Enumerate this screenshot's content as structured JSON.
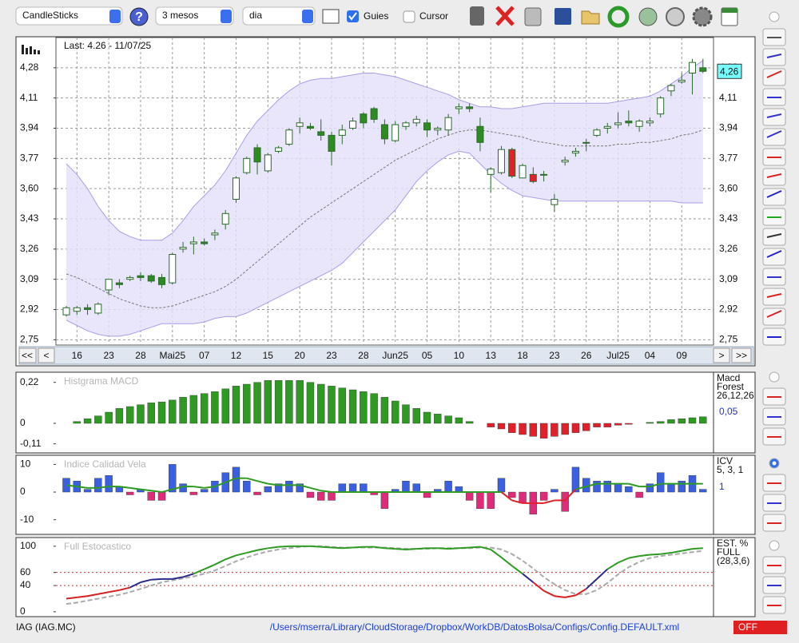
{
  "toolbar": {
    "chart_type": "CandleSticks",
    "period": "3 mesos",
    "interval": "dia",
    "guides": "Guies",
    "cursor": "Cursor",
    "help": "?"
  },
  "navigation": {
    "first": "<<",
    "prev": "<",
    "next": ">",
    "last": ">>"
  },
  "status": {
    "symbol": "IAG (IAG.MC)",
    "config_path": "/Users/mserra/Library/CloudStorage/Dropbox/WorkDB/DatosBolsa/Configs/Config.DEFAULT.xml",
    "mode": "OFF"
  },
  "chart_data": [
    {
      "type": "candlestick",
      "title": "Last: 4.26 - 11/07/25",
      "title_color": "#111",
      "categories": [
        null,
        "16",
        null,
        null,
        "23",
        null,
        null,
        "28",
        null,
        null,
        "Mai25",
        null,
        null,
        "07",
        null,
        null,
        "12",
        null,
        null,
        "15",
        null,
        null,
        "20",
        null,
        null,
        "23",
        null,
        null,
        "28",
        null,
        null,
        "Jun25",
        null,
        null,
        "05",
        null,
        null,
        "10",
        null,
        null,
        "13",
        null,
        null,
        "18",
        null,
        null,
        "23",
        null,
        null,
        "26",
        null,
        null,
        "Jul25",
        null,
        null,
        "04",
        null,
        null,
        "09",
        null,
        null
      ],
      "open": [
        2.89,
        2.91,
        2.93,
        2.9,
        3.03,
        3.07,
        3.09,
        3.11,
        3.11,
        3.1,
        3.07,
        3.26,
        3.29,
        3.3,
        3.34,
        3.4,
        3.54,
        3.69,
        3.83,
        3.7,
        3.81,
        3.85,
        3.95,
        3.95,
        3.92,
        3.9,
        3.9,
        3.94,
        4.02,
        4.05,
        3.96,
        3.87,
        3.95,
        3.97,
        3.97,
        3.93,
        3.93,
        4.05,
        4.06,
        3.95,
        3.68,
        3.69,
        3.82,
        3.66,
        3.68,
        3.68,
        3.51,
        3.75,
        3.8,
        3.86,
        3.9,
        3.94,
        3.96,
        3.98,
        3.95,
        3.97,
        4.02,
        4.15,
        4.2,
        4.25,
        4.28
      ],
      "high": [
        2.94,
        2.94,
        2.95,
        2.96,
        3.08,
        3.09,
        3.11,
        3.13,
        3.12,
        3.12,
        3.24,
        3.3,
        3.33,
        3.32,
        3.37,
        3.48,
        3.67,
        3.78,
        3.85,
        3.8,
        3.84,
        3.94,
        4.0,
        3.97,
        3.99,
        3.92,
        3.96,
        4.0,
        4.03,
        4.06,
        3.99,
        3.98,
        3.98,
        4.01,
        3.99,
        3.95,
        4.02,
        4.08,
        4.08,
        4.0,
        3.72,
        3.84,
        3.83,
        3.74,
        3.72,
        3.7,
        3.57,
        3.78,
        3.83,
        3.88,
        3.94,
        3.97,
        4.03,
        4.04,
        3.99,
        4.0,
        4.12,
        4.19,
        4.25,
        4.33,
        4.33
      ],
      "low": [
        2.88,
        2.89,
        2.89,
        2.89,
        3.0,
        3.04,
        3.08,
        3.08,
        3.07,
        3.04,
        3.06,
        3.24,
        3.23,
        3.28,
        3.31,
        3.37,
        3.52,
        3.68,
        3.68,
        3.69,
        3.8,
        3.84,
        3.91,
        3.93,
        3.87,
        3.73,
        3.85,
        3.93,
        3.94,
        3.97,
        3.85,
        3.86,
        3.93,
        3.95,
        3.89,
        3.9,
        3.9,
        4.02,
        4.03,
        3.81,
        3.58,
        3.68,
        3.66,
        3.66,
        3.63,
        3.64,
        3.47,
        3.73,
        3.78,
        3.81,
        3.89,
        3.91,
        3.94,
        3.95,
        3.92,
        3.95,
        4.0,
        4.12,
        4.19,
        4.13,
        4.25
      ],
      "close": [
        2.93,
        2.93,
        2.92,
        2.95,
        3.09,
        3.06,
        3.1,
        3.1,
        3.08,
        3.06,
        3.23,
        3.27,
        3.3,
        3.29,
        3.35,
        3.46,
        3.66,
        3.77,
        3.75,
        3.79,
        3.83,
        3.93,
        3.97,
        3.94,
        3.9,
        3.81,
        3.93,
        3.98,
        3.97,
        3.99,
        3.88,
        3.96,
        3.97,
        3.99,
        3.93,
        3.94,
        4.0,
        4.06,
        4.05,
        3.86,
        3.71,
        3.82,
        3.67,
        3.73,
        3.64,
        3.68,
        3.54,
        3.76,
        3.81,
        3.86,
        3.93,
        3.95,
        3.97,
        3.97,
        3.98,
        3.98,
        4.11,
        4.18,
        4.21,
        4.31,
        4.26
      ],
      "candle_colors": [
        "#ffffff",
        "#ffffff",
        "#2e8b22",
        "#ffffff",
        "#ffffff",
        "#2e8b22",
        "#ffffff",
        "#2e8b22",
        "#2e8b22",
        "#2e8b22",
        "#ffffff",
        "#ffffff",
        "#ffffff",
        "#2e8b22",
        "#ffffff",
        "#ffffff",
        "#ffffff",
        "#ffffff",
        "#2e8b22",
        "#ffffff",
        "#ffffff",
        "#ffffff",
        "#ffffff",
        "#2e8b22",
        "#2e8b22",
        "#2e8b22",
        "#ffffff",
        "#ffffff",
        "#2e8b22",
        "#2e8b22",
        "#2e8b22",
        "#ffffff",
        "#ffffff",
        "#ffffff",
        "#2e8b22",
        "#ffffff",
        "#ffffff",
        "#ffffff",
        "#2e8b22",
        "#2e8b22",
        "#ffffff",
        "#ffffff",
        "#e0202a",
        "#ffffff",
        "#e0202a",
        "#e0202a",
        "#ffffff",
        "#ffffff",
        "#ffffff",
        "#ffffff",
        "#ffffff",
        "#ffffff",
        "#ffffff",
        "#2e8b22",
        "#ffffff",
        "#ffffff",
        "#ffffff",
        "#ffffff",
        "#ffffff",
        "#ffffff",
        "#2e8b22"
      ],
      "bands": {
        "color": "#a79ee6",
        "fill": "#e4e0fa",
        "upper": [
          3.74,
          3.68,
          3.6,
          3.5,
          3.42,
          3.36,
          3.33,
          3.31,
          3.31,
          3.31,
          3.35,
          3.42,
          3.5,
          3.56,
          3.62,
          3.7,
          3.8,
          3.9,
          3.98,
          4.04,
          4.1,
          4.15,
          4.19,
          4.21,
          4.22,
          4.22,
          4.23,
          4.24,
          4.25,
          4.25,
          4.24,
          4.23,
          4.21,
          4.19,
          4.17,
          4.15,
          4.13,
          4.1,
          4.08,
          4.06,
          4.06,
          4.05,
          4.05,
          4.06,
          4.07,
          4.08,
          4.08,
          4.08,
          4.08,
          4.08,
          4.08,
          4.08,
          4.09,
          4.1,
          4.11,
          4.12,
          4.15,
          4.19,
          4.23,
          4.28,
          4.32
        ],
        "lower": [
          2.86,
          2.83,
          2.8,
          2.78,
          2.77,
          2.77,
          2.78,
          2.8,
          2.82,
          2.84,
          2.84,
          2.84,
          2.84,
          2.85,
          2.87,
          2.88,
          2.88,
          2.9,
          2.93,
          2.96,
          2.99,
          3.02,
          3.05,
          3.08,
          3.11,
          3.14,
          3.18,
          3.24,
          3.3,
          3.36,
          3.42,
          3.48,
          3.56,
          3.64,
          3.7,
          3.75,
          3.79,
          3.81,
          3.8,
          3.74,
          3.68,
          3.63,
          3.59,
          3.56,
          3.55,
          3.54,
          3.53,
          3.53,
          3.53,
          3.53,
          3.53,
          3.53,
          3.53,
          3.53,
          3.53,
          3.53,
          3.53,
          3.53,
          3.52,
          3.52,
          3.52
        ]
      },
      "average": {
        "color": "#777777",
        "values": [
          3.12,
          3.1,
          3.07,
          3.04,
          3.01,
          2.98,
          2.96,
          2.94,
          2.93,
          2.93,
          2.94,
          2.96,
          2.98,
          3.0,
          3.02,
          3.05,
          3.09,
          3.14,
          3.19,
          3.24,
          3.29,
          3.34,
          3.39,
          3.44,
          3.48,
          3.52,
          3.56,
          3.6,
          3.64,
          3.68,
          3.72,
          3.76,
          3.79,
          3.82,
          3.85,
          3.88,
          3.9,
          3.92,
          3.93,
          3.93,
          3.92,
          3.91,
          3.9,
          3.89,
          3.87,
          3.86,
          3.85,
          3.84,
          3.84,
          3.84,
          3.84,
          3.84,
          3.85,
          3.85,
          3.86,
          3.86,
          3.87,
          3.88,
          3.9,
          3.91,
          3.93
        ]
      },
      "last_price": {
        "value": 4.26,
        "label": "4,26"
      },
      "ylim": [
        2.72,
        4.45
      ],
      "yticks": [
        {
          "value": 2.75,
          "label": "2,75"
        },
        {
          "value": 2.92,
          "label": "2,92"
        },
        {
          "value": 3.09,
          "label": "3,09"
        },
        {
          "value": 3.26,
          "label": "3,26"
        },
        {
          "value": 3.43,
          "label": "3,43"
        },
        {
          "value": 3.6,
          "label": "3,60"
        },
        {
          "value": 3.77,
          "label": "3,77"
        },
        {
          "value": 3.94,
          "label": "3,94"
        },
        {
          "value": 4.11,
          "label": "4,11"
        },
        {
          "value": 4.28,
          "label": "4,28"
        }
      ],
      "right_axis": true,
      "grid": true,
      "grid_color": "#9a9a9a"
    },
    {
      "type": "histogram",
      "title": "Histgrama MACD",
      "title_color": "#b5b5b5",
      "legend": [
        "Macd",
        "Forest",
        "26,12,26"
      ],
      "readout": "0,05",
      "up_color": "#2e9a22",
      "down_color": "#e0202a",
      "values": [
        0,
        0.01,
        0.025,
        0.04,
        0.06,
        0.08,
        0.09,
        0.1,
        0.11,
        0.115,
        0.125,
        0.14,
        0.15,
        0.16,
        0.17,
        0.185,
        0.2,
        0.21,
        0.22,
        0.23,
        0.23,
        0.23,
        0.23,
        0.22,
        0.21,
        0.2,
        0.19,
        0.18,
        0.17,
        0.16,
        0.14,
        0.12,
        0.1,
        0.08,
        0.06,
        0.05,
        0.04,
        0.03,
        0.01,
        0,
        -0.02,
        -0.03,
        -0.05,
        -0.06,
        -0.07,
        -0.08,
        -0.07,
        -0.06,
        -0.05,
        -0.04,
        -0.02,
        -0.02,
        -0.01,
        -0.005,
        0,
        0.005,
        0.01,
        0.02,
        0.025,
        0.03,
        0.035
      ],
      "ylim": [
        -0.15,
        0.27
      ],
      "yticks": [
        {
          "value": -0.11,
          "label": "-0,11"
        },
        0,
        {
          "value": 0.22,
          "label": "0,22"
        }
      ]
    },
    {
      "type": "bars_line",
      "title": "Indice Calidad Vela",
      "title_color": "#b5b5b5",
      "legend": [
        "ICV",
        "5, 3, 1"
      ],
      "readout": "1",
      "up_color": "#3a5fe0",
      "down_color": "#e02a7a",
      "line_color": "#2e9a22",
      "line_down_color": "#e0202a",
      "values": [
        5,
        4,
        1,
        5,
        6,
        2,
        -1,
        1,
        -3,
        -3,
        10,
        3,
        -1,
        1,
        4,
        7,
        9,
        4,
        -1,
        2,
        3,
        4,
        3,
        -2,
        -3,
        -3,
        3,
        3,
        3,
        -1,
        -6,
        1,
        4,
        3,
        -2,
        1,
        4,
        2,
        -3,
        -6,
        -6,
        5,
        -2,
        -4,
        -8,
        -3,
        1,
        -7,
        9,
        5,
        4,
        4,
        3,
        2,
        -2,
        3,
        7,
        3,
        4,
        6,
        1
      ],
      "line": [
        2.5,
        2,
        1.5,
        1.5,
        2,
        2,
        1.5,
        1,
        0.5,
        0,
        1,
        2,
        2,
        1.5,
        2,
        3.5,
        5,
        5,
        4,
        3,
        2.5,
        2.5,
        2.5,
        1.5,
        0.5,
        0,
        0,
        0,
        0,
        0,
        0,
        0,
        0,
        0,
        0,
        0,
        0,
        0,
        0,
        0,
        0,
        0,
        -3,
        -4,
        -4,
        -4,
        -3,
        -3,
        1,
        2,
        3,
        3,
        3,
        3,
        2,
        2,
        3,
        3,
        3,
        3,
        3
      ],
      "ylim": [
        -15,
        13
      ],
      "yticks": [
        -10,
        0,
        10
      ]
    },
    {
      "type": "oscillator",
      "title": "Full Estocastico",
      "title_color": "#b5b5b5",
      "legend": [
        "EST. %",
        "FULL",
        "(28,3,6)"
      ],
      "zone_colors": [
        "#d42020",
        "#2a2a8a",
        "#2e9a22"
      ],
      "signal_color": "#aaaaaa",
      "k": [
        20,
        22,
        24,
        27,
        30,
        33,
        37,
        45,
        49,
        50,
        50,
        53,
        58,
        65,
        72,
        80,
        86,
        90,
        94,
        97,
        99,
        100,
        100,
        100,
        99,
        98,
        97,
        98,
        99,
        99,
        97,
        96,
        95,
        96,
        97,
        97,
        96,
        97,
        98,
        99,
        95,
        83,
        70,
        58,
        45,
        32,
        24,
        22,
        25,
        35,
        50,
        65,
        75,
        82,
        85,
        87,
        88,
        90,
        93,
        96,
        97
      ],
      "d": [
        12,
        14,
        17,
        20,
        23,
        26,
        30,
        35,
        40,
        45,
        48,
        51,
        54,
        58,
        63,
        70,
        77,
        83,
        88,
        92,
        95,
        97,
        99,
        100,
        100,
        99,
        98,
        98,
        98,
        98,
        98,
        97,
        96,
        96,
        96,
        97,
        97,
        97,
        97,
        98,
        98,
        95,
        88,
        78,
        66,
        53,
        42,
        33,
        27,
        27,
        33,
        44,
        57,
        68,
        76,
        82,
        85,
        87,
        89,
        91,
        93
      ],
      "ylim": [
        -5,
        112
      ],
      "yticks": [
        0,
        40,
        60,
        100
      ],
      "grid_color": "#c03030"
    }
  ]
}
